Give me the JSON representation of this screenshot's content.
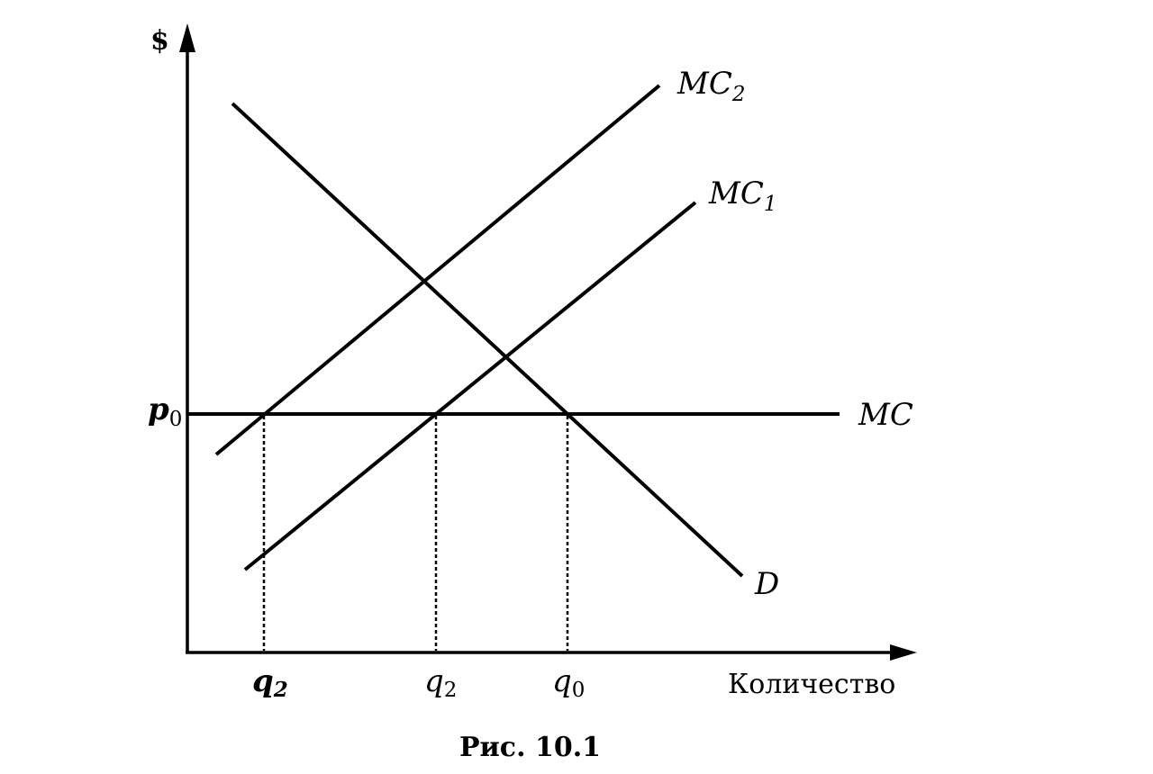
{
  "figure": {
    "y_axis_label": "$",
    "x_axis_label": "Количество",
    "caption": "Рис. 10.1"
  },
  "curves": {
    "mc2": {
      "label": "MC",
      "sub": "2"
    },
    "mc1": {
      "label": "MC",
      "sub": "1"
    },
    "mc": {
      "label": "MC"
    },
    "d": {
      "label": "D"
    }
  },
  "price_labels": {
    "p0": {
      "main": "p",
      "sub": "0"
    }
  },
  "quantity_labels": [
    {
      "main": "q",
      "sub": "2",
      "style": "bold"
    },
    {
      "main": "q",
      "sub": "2",
      "style": "italic"
    },
    {
      "main": "q",
      "sub": "0",
      "style": "italic"
    }
  ]
}
